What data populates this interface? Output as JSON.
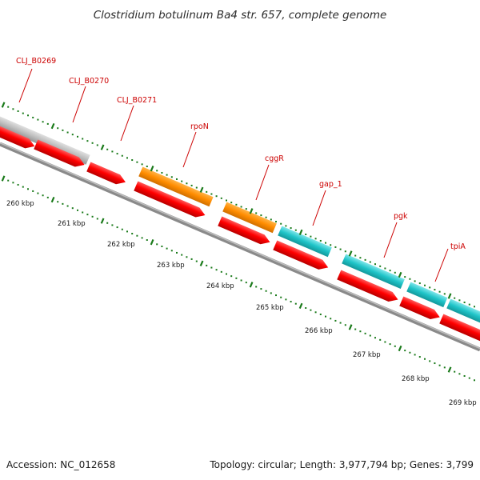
{
  "title": "Clostridium botulinum Ba4 str. 657, complete genome",
  "accession": "Accession: NC_012658",
  "summary": "Topology: circular; Length: 3,977,794 bp; Genes: 3,799",
  "colors": {
    "cds_forward": "#ff8c00",
    "cds_forward_alt": "#1fc4c8",
    "cds_forward_gray": "#bdbdbd",
    "cds_reverse": "#ff0000",
    "backbone": "#707070",
    "tick": "#1a7a1a",
    "label": "#cc0000"
  },
  "gene_labels": [
    {
      "name": "CLJ_B0269"
    },
    {
      "name": "CLJ_B0270"
    },
    {
      "name": "CLJ_B0271"
    },
    {
      "name": "rpoN"
    },
    {
      "name": "cggR"
    },
    {
      "name": "gap_1"
    },
    {
      "name": "pgk"
    },
    {
      "name": "tpiA"
    }
  ],
  "kbp_labels": [
    "260 kbp",
    "261 kbp",
    "262 kbp",
    "263 kbp",
    "264 kbp",
    "265 kbp",
    "266 kbp",
    "267 kbp",
    "268 kbp",
    "269 kbp"
  ]
}
